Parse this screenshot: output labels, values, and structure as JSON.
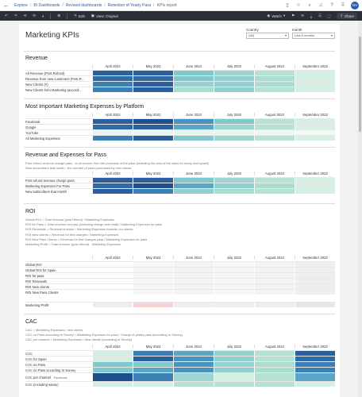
{
  "breadcrumbs": [
    "Explore",
    "BI Dashboards",
    "Revised dashboards",
    "Retention of Yearly Pass",
    "KPIs report"
  ],
  "topbar": {
    "avatar": "NV"
  },
  "toolbar": {
    "edit": "Edit",
    "view": "View: Original",
    "watch": "Watch",
    "share": "Share"
  },
  "title": "Marketing KPIs",
  "filters": [
    {
      "label": "Country",
      "value": "(All)"
    },
    {
      "label": "month",
      "value": "Last 6 months"
    }
  ],
  "months": [
    "April 2022",
    "May 2022",
    "June 2022",
    "July 2022",
    "August 2022",
    "September 2022"
  ],
  "sections": {
    "revenue": {
      "title": "Revenue",
      "rows": [
        "All Revenue (Post Refund)",
        "Revenue from new customers (Post R..",
        "New Clients (#)",
        "New Clients from Marketing (accordi.."
      ]
    },
    "platform": {
      "title": "Most Important Marketing Expenses by Platform",
      "rows": [
        "Facebook",
        "Google",
        "YouTube",
        "All Marketing Expenses"
      ]
    },
    "pass": {
      "title": "Revenue and Expenses for Pass",
      "notes": [
        "Post refund revenue charge pass - is all income from the purchase of the pass (including the cost of the class for bump and upsell)",
        "New subscribers that month - the number of pass purchased by new clients"
      ],
      "rows": [
        "Post refund revenue charge pass",
        "Marketing Expenses For Pass",
        "New subscribers that month"
      ]
    },
    "roi": {
      "title": "ROI",
      "notes": [
        "Global ROI = Total revenue (post refund) / Marketing Expenses",
        "ROI for Pass = Total revenue for pass (including charge and retail) / Marketing Expenses for pass",
        "ROI Renewals = Renewal revenue / Marketing Expenses towards our clients",
        "ROI New clients = Revenue for first charges / Marketing Expenses",
        "ROI New Pass Clients = Revenue for first charges pass / Marketing Expenses for pass",
        "Marketing Profit = Total revenue (post refund) - Marketing Expenses"
      ],
      "rows": [
        "Global ROI",
        "Global ROI for Spain",
        "ROI for pass",
        "ROI Renewals",
        "ROI New clients",
        "ROI New Pass Clients"
      ],
      "profit": "Marketing Profit"
    },
    "cac": {
      "title": "CAC",
      "notes": [
        "CAC = Marketing Expenses / new clients",
        "CAC on Pass according to Survey = Marketing Expenses for pass / Charge of yearly pass (according to Survey)",
        "CAC per channel = Marketing Expenses / New clients (according to Survey)"
      ],
      "rows": [
        "CAC",
        "CAC for Spain",
        "CAC on Pass",
        "CAC on Pass according to Survey"
      ],
      "channel": "CAC per channel",
      "channel_sub": [
        "Facebook",
        "google & youtube"
      ],
      "last": "CAC (including salary)"
    }
  },
  "heat": {
    "revenue": [
      [
        "#2b5f9e",
        "#2b5f9e",
        "#7fc8cc",
        "#9cd6cf",
        "#b6e2d4",
        "#d5efe3"
      ],
      [
        "#2e6aa5",
        "#2e6aa5",
        "#7fc8cc",
        "#8fd0cf",
        "#a9ddd1",
        "#d5efe3"
      ],
      [
        "#3b7fb3",
        "#2b5f9e",
        "#95d2cf",
        "#8fd0cf",
        "#a9ddd1",
        "#d5efe3"
      ],
      [
        "#3b7fb3",
        "#2b5f9e",
        "#a9ddd1",
        "#8fd0cf",
        "#b6e2d4",
        "#d5efe3"
      ]
    ],
    "platform": [
      [
        "#2b5f9e",
        "#1f4e8c",
        "#4a93bf",
        "#7fc8cc",
        "#b6e2d4",
        "#d5efe3"
      ],
      [
        "#2e6aa5",
        "#2b5f9e",
        "#5aa6c4",
        "#9cd6cf",
        "#b6e2d4",
        "#d5efe3"
      ],
      [
        "#e8f5ee",
        "#e8f5ee",
        "#e8f5ee",
        "#e8f5ee",
        "#eef8f2",
        "#f3faf6"
      ],
      [
        "#3b7fb3",
        "#2b5f9e",
        "#7fc8cc",
        "#9cd6cf",
        "#b6e2d4",
        "#d5efe3"
      ]
    ],
    "pass": [
      [
        "#2b5f9e",
        "#2b5f9e",
        "#7fc8cc",
        "#9cd6cf",
        "#b6e2d4",
        "#d5efe3"
      ],
      [
        "#2e6aa5",
        "#1f4e8c",
        "#5aa6c4",
        "#8fd0cf",
        "#a9ddd1",
        "#d5efe3"
      ],
      [
        "#2b5f9e",
        "#3b7fb3",
        "#8fd0cf",
        "#a9ddd1",
        "#b6e2d4",
        "#d5efe3"
      ]
    ],
    "roi": [
      [
        "#ffffff",
        "#f6f6f6",
        "#f3f3f3",
        "#f6f6f6",
        "#f3f3f3",
        "#eeeeee"
      ],
      [
        "#ffffff",
        "#f6f6f6",
        "#f3f3f3",
        "#f6f6f6",
        "#f3f3f3",
        "#eeeeee"
      ],
      [
        "#ffffff",
        "#f6f6f6",
        "#f3f3f3",
        "#f6f6f6",
        "#f3f3f3",
        "#eeeeee"
      ],
      [
        "#ffffff",
        "#f6f6f6",
        "#f3f3f3",
        "#f6f6f6",
        "#f3f3f3",
        "#eeeeee"
      ],
      [
        "#ffffff",
        "#f6f6f6",
        "#f3f3f3",
        "#f6f6f6",
        "#f3f3f3",
        "#eeeeee"
      ],
      [
        "#ffffff",
        "#f6f6f6",
        "#f3f3f3",
        "#f6f6f6",
        "#f3f3f3",
        "#eeeeee"
      ]
    ],
    "profit": [
      "#eeeeee",
      "#f7d3d3",
      "#eeeeee",
      "#eeeeee",
      "#eeeeee",
      "#e6e6e6"
    ],
    "cac": [
      [
        "#d5efe3",
        "#3b7fb3",
        "#5aa6c4",
        "#95d2cf",
        "#b6e2d4",
        "#2b5f9e"
      ],
      [
        "#d5efe3",
        "#2b5f9e",
        "#4a93bf",
        "#8fd0cf",
        "#b6e2d4",
        "#2e6aa5"
      ],
      [
        "#7fc8cc",
        "#7fc8cc",
        "#4a93bf",
        "#95d2cf",
        "#a9ddd1",
        "#3b7fb3"
      ],
      [
        "#7fc8cc",
        "#5aa6c4",
        "#4a93bf",
        "#8fd0cf",
        "#a9ddd1",
        "#3b7fb3"
      ]
    ],
    "channel": [
      "#1f4e8c",
      "#3b7fb3",
      "#9cd6cf",
      "#d5efe3",
      "#b6e2d4",
      "#5aa6c4"
    ],
    "last": [
      "#d5efe3",
      "#d5efe3",
      "#b6e2d4",
      "#b6e2d4",
      "#b6e2d4",
      "#d5efe3"
    ]
  }
}
